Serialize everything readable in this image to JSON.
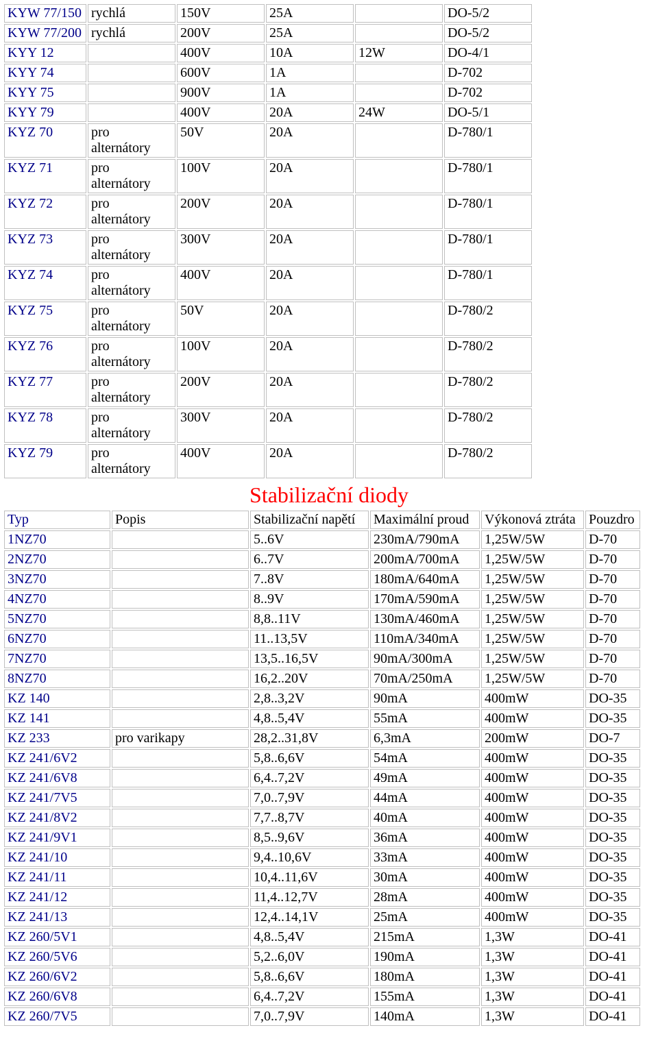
{
  "table1": {
    "cols": [
      120,
      128,
      128,
      128,
      128,
      128
    ],
    "rows": [
      {
        "link": true,
        "c": [
          "KYW 77/150",
          "rychlá",
          "150V",
          "25A",
          "",
          "DO-5/2"
        ]
      },
      {
        "link": true,
        "c": [
          "KYW 77/200",
          "rychlá",
          "200V",
          "25A",
          "",
          "DO-5/2"
        ]
      },
      {
        "link": true,
        "c": [
          "KYY 12",
          "",
          "400V",
          "10A",
          "12W",
          "DO-4/1"
        ]
      },
      {
        "link": true,
        "c": [
          "KYY 74",
          "",
          "600V",
          "1A",
          "",
          "D-702"
        ]
      },
      {
        "link": true,
        "c": [
          "KYY 75",
          "",
          "900V",
          "1A",
          "",
          "D-702"
        ]
      },
      {
        "link": true,
        "c": [
          "KYY 79",
          "",
          "400V",
          "20A",
          "24W",
          "DO-5/1"
        ]
      },
      {
        "link": true,
        "c": [
          "KYZ 70",
          "pro alternátory",
          "50V",
          "20A",
          "",
          "D-780/1"
        ]
      },
      {
        "link": true,
        "c": [
          "KYZ 71",
          "pro alternátory",
          "100V",
          "20A",
          "",
          "D-780/1"
        ]
      },
      {
        "link": true,
        "c": [
          "KYZ 72",
          "pro alternátory",
          "200V",
          "20A",
          "",
          "D-780/1"
        ]
      },
      {
        "link": true,
        "c": [
          "KYZ 73",
          "pro alternátory",
          "300V",
          "20A",
          "",
          "D-780/1"
        ]
      },
      {
        "link": true,
        "c": [
          "KYZ 74",
          "pro alternátory",
          "400V",
          "20A",
          "",
          "D-780/1"
        ]
      },
      {
        "link": true,
        "c": [
          "KYZ 75",
          "pro alternátory",
          "50V",
          "20A",
          "",
          "D-780/2"
        ]
      },
      {
        "link": true,
        "c": [
          "KYZ 76",
          "pro alternátory",
          "100V",
          "20A",
          "",
          "D-780/2"
        ]
      },
      {
        "link": true,
        "c": [
          "KYZ 77",
          "pro alternátory",
          "200V",
          "20A",
          "",
          "D-780/2"
        ]
      },
      {
        "link": true,
        "c": [
          "KYZ 78",
          "pro alternátory",
          "300V",
          "20A",
          "",
          "D-780/2"
        ]
      },
      {
        "link": true,
        "c": [
          "KYZ 79",
          "pro alternátory",
          "400V",
          "20A",
          "",
          "D-780/2"
        ]
      }
    ]
  },
  "section2": {
    "title": "Stabilizační diody"
  },
  "table2": {
    "cols": [
      155,
      200,
      173,
      160,
      150,
      80
    ],
    "header_row": {
      "c": [
        "Typ",
        "Popis",
        "Stabilizační napětí",
        "Maximální proud",
        "Výkonová ztráta",
        "Pouzdro"
      ],
      "header": true
    },
    "rows": [
      {
        "link": true,
        "c": [
          "1NZ70",
          "",
          "5..6V",
          "230mA/790mA",
          "1,25W/5W",
          "D-70"
        ]
      },
      {
        "link": true,
        "c": [
          "2NZ70",
          "",
          "6..7V",
          "200mA/700mA",
          "1,25W/5W",
          "D-70"
        ]
      },
      {
        "link": true,
        "c": [
          "3NZ70",
          "",
          "7..8V",
          "180mA/640mA",
          "1,25W/5W",
          "D-70"
        ]
      },
      {
        "link": true,
        "c": [
          "4NZ70",
          "",
          "8..9V",
          "170mA/590mA",
          "1,25W/5W",
          "D-70"
        ]
      },
      {
        "link": true,
        "c": [
          "5NZ70",
          "",
          "8,8..11V",
          "130mA/460mA",
          "1,25W/5W",
          "D-70"
        ]
      },
      {
        "link": true,
        "c": [
          "6NZ70",
          "",
          "11..13,5V",
          "110mA/340mA",
          "1,25W/5W",
          "D-70"
        ]
      },
      {
        "link": true,
        "c": [
          "7NZ70",
          "",
          "13,5..16,5V",
          "90mA/300mA",
          "1,25W/5W",
          "D-70"
        ]
      },
      {
        "link": true,
        "c": [
          "8NZ70",
          "",
          "16,2..20V",
          "70mA/250mA",
          "1,25W/5W",
          "D-70"
        ]
      },
      {
        "link": true,
        "c": [
          "KZ 140",
          "",
          "2,8..3,2V",
          "90mA",
          "400mW",
          "DO-35"
        ]
      },
      {
        "link": true,
        "c": [
          "KZ 141",
          "",
          "4,8..5,4V",
          "55mA",
          "400mW",
          "DO-35"
        ]
      },
      {
        "link": true,
        "c": [
          "KZ 233",
          "pro varikapy",
          "28,2..31,8V",
          "6,3mA",
          "200mW",
          "DO-7"
        ]
      },
      {
        "link": true,
        "c": [
          "KZ 241/6V2",
          "",
          "5,8..6,6V",
          "54mA",
          "400mW",
          "DO-35"
        ]
      },
      {
        "link": true,
        "c": [
          "KZ 241/6V8",
          "",
          "6,4..7,2V",
          "49mA",
          "400mW",
          "DO-35"
        ]
      },
      {
        "link": true,
        "c": [
          "KZ 241/7V5",
          "",
          "7,0..7,9V",
          "44mA",
          "400mW",
          "DO-35"
        ]
      },
      {
        "link": true,
        "c": [
          "KZ 241/8V2",
          "",
          "7,7..8,7V",
          "40mA",
          "400mW",
          "DO-35"
        ]
      },
      {
        "link": true,
        "c": [
          "KZ 241/9V1",
          "",
          "8,5..9,6V",
          "36mA",
          "400mW",
          "DO-35"
        ]
      },
      {
        "link": true,
        "c": [
          "KZ 241/10",
          "",
          "9,4..10,6V",
          "33mA",
          "400mW",
          "DO-35"
        ]
      },
      {
        "link": true,
        "c": [
          "KZ 241/11",
          "",
          "10,4..11,6V",
          "30mA",
          "400mW",
          "DO-35"
        ]
      },
      {
        "link": true,
        "c": [
          "KZ 241/12",
          "",
          "11,4..12,7V",
          "28mA",
          "400mW",
          "DO-35"
        ]
      },
      {
        "link": true,
        "c": [
          "KZ 241/13",
          "",
          "12,4..14,1V",
          "25mA",
          "400mW",
          "DO-35"
        ]
      },
      {
        "link": true,
        "c": [
          "KZ 260/5V1",
          "",
          "4,8..5,4V",
          "215mA",
          "1,3W",
          "DO-41"
        ]
      },
      {
        "link": true,
        "c": [
          "KZ 260/5V6",
          "",
          "5,2..6,0V",
          "190mA",
          "1,3W",
          "DO-41"
        ]
      },
      {
        "link": true,
        "c": [
          "KZ 260/6V2",
          "",
          "5,8..6,6V",
          "180mA",
          "1,3W",
          "DO-41"
        ]
      },
      {
        "link": true,
        "c": [
          "KZ 260/6V8",
          "",
          "6,4..7,2V",
          "155mA",
          "1,3W",
          "DO-41"
        ]
      },
      {
        "link": true,
        "c": [
          "KZ 260/7V5",
          "",
          "7,0..7,9V",
          "140mA",
          "1,3W",
          "DO-41"
        ]
      }
    ]
  }
}
